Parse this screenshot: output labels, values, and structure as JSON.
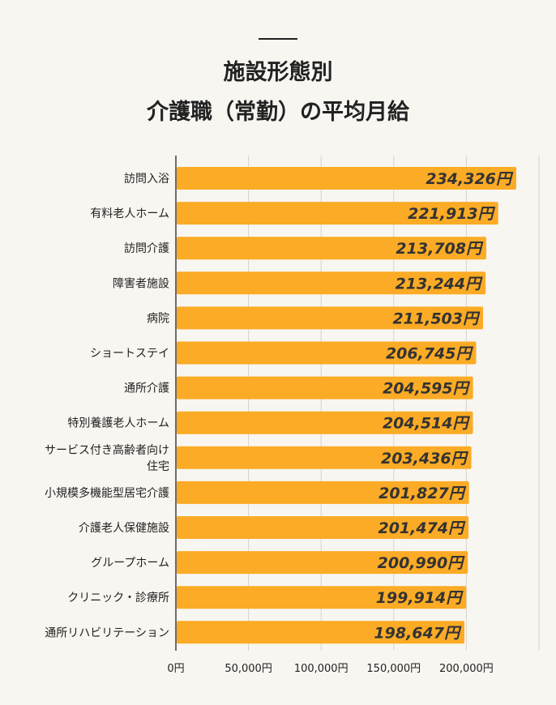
{
  "chart_data": {
    "type": "bar",
    "orientation": "horizontal",
    "title_lines": [
      "施設形態別",
      "介護職（常勤）の平均月給"
    ],
    "categories": [
      "訪問入浴",
      "有料老人ホーム",
      "訪問介護",
      "障害者施設",
      "病院",
      "ショートステイ",
      "通所介護",
      "特別養護老人ホーム",
      "サービス付き高齢者向け住宅",
      "小規模多機能型居宅介護",
      "介護老人保健施設",
      "グループホーム",
      "クリニック・診療所",
      "通所リハビリテーション"
    ],
    "category_lines": [
      [
        "訪問入浴"
      ],
      [
        "有料老人ホーム"
      ],
      [
        "訪問介護"
      ],
      [
        "障害者施設"
      ],
      [
        "病院"
      ],
      [
        "ショートステイ"
      ],
      [
        "通所介護"
      ],
      [
        "特別養護老人ホーム"
      ],
      [
        "サービス付き高齢者向け",
        "住宅"
      ],
      [
        "小規模多機能型居宅介護"
      ],
      [
        "介護老人保健施設"
      ],
      [
        "グループホーム"
      ],
      [
        "クリニック・診療所"
      ],
      [
        "通所リハビリテーション"
      ]
    ],
    "values": [
      234326,
      221913,
      213708,
      213244,
      211503,
      206745,
      204595,
      204514,
      203436,
      201827,
      201474,
      200990,
      199914,
      198647
    ],
    "data_labels": [
      "234,326円",
      "221,913円",
      "213,708円",
      "213,244円",
      "211,503円",
      "206,745円",
      "204,595円",
      "204,514円",
      "203,436円",
      "201,827円",
      "201,474円",
      "200,990円",
      "199,914円",
      "198,647円"
    ],
    "xlim": [
      0,
      250000
    ],
    "x_ticks": [
      0,
      50000,
      100000,
      150000,
      200000
    ],
    "x_tick_labels": [
      "0円",
      "50,000円",
      "100,000円",
      "150,000円",
      "200,000円"
    ],
    "grid": true,
    "bar_color": "#fbab25",
    "label_color": "#333333"
  }
}
